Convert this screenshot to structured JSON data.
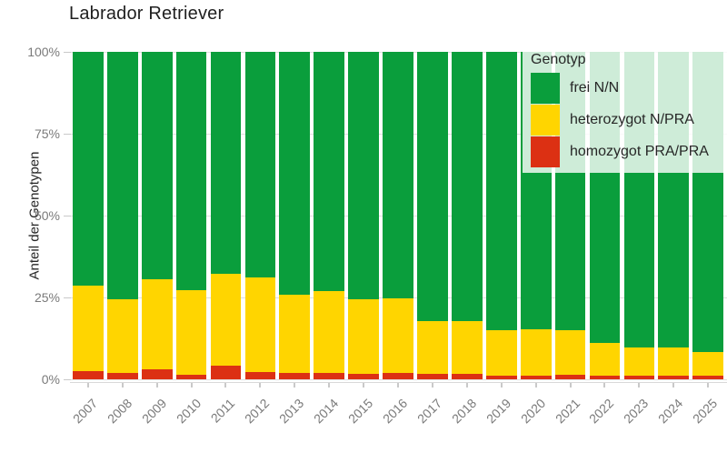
{
  "title": "Labrador Retriever",
  "y_axis": {
    "title": "Anteil der Genotypen",
    "tick_labels": [
      "0%",
      "25%",
      "50%",
      "75%",
      "100%"
    ],
    "tick_values": [
      0,
      25,
      50,
      75,
      100
    ]
  },
  "x_axis": {
    "tick_labels": [
      "2007",
      "2008",
      "2009",
      "2010",
      "2011",
      "2012",
      "2013",
      "2014",
      "2015",
      "2016",
      "2017",
      "2018",
      "2019",
      "2020",
      "2021",
      "2022",
      "2023",
      "2024",
      "2025"
    ]
  },
  "legend": {
    "title": "Genotyp",
    "items": [
      {
        "label": "frei N/N",
        "color": "#0a9e3c"
      },
      {
        "label": "heterozygot N/PRA",
        "color": "#ffd500"
      },
      {
        "label": "homozygot PRA/PRA",
        "color": "#dc3013"
      }
    ]
  },
  "chart_data": {
    "type": "bar",
    "stacked": true,
    "stack_unit": "percent",
    "title": "Labrador Retriever",
    "xlabel": "",
    "ylabel": "Anteil der Genotypen",
    "ylim": [
      0,
      100
    ],
    "grid": true,
    "legend_position": "top-right-overlay",
    "categories": [
      "2007",
      "2008",
      "2009",
      "2010",
      "2011",
      "2012",
      "2013",
      "2014",
      "2015",
      "2016",
      "2017",
      "2018",
      "2019",
      "2020",
      "2021",
      "2022",
      "2023",
      "2024",
      "2025"
    ],
    "series": [
      {
        "name": "frei N/N",
        "color": "#0a9e3c",
        "values": [
          71.5,
          75.5,
          69.5,
          72.8,
          67.8,
          68.9,
          74.2,
          73.1,
          75.6,
          75.3,
          82.2,
          82.2,
          85.0,
          84.7,
          85.0,
          88.9,
          90.3,
          90.3,
          91.7
        ]
      },
      {
        "name": "heterozygot N/PRA",
        "color": "#ffd500",
        "values": [
          26.0,
          22.5,
          27.5,
          25.8,
          28.0,
          28.9,
          23.8,
          25.0,
          22.6,
          22.8,
          16.1,
          16.0,
          13.9,
          14.2,
          13.6,
          10.0,
          8.6,
          8.6,
          7.2
        ]
      },
      {
        "name": "homozygot PRA/PRA",
        "color": "#dc3013",
        "values": [
          2.5,
          2.0,
          3.0,
          1.4,
          4.2,
          2.2,
          2.0,
          1.9,
          1.8,
          1.9,
          1.7,
          1.8,
          1.1,
          1.1,
          1.4,
          1.1,
          1.1,
          1.1,
          1.1
        ]
      }
    ]
  },
  "colors": {
    "green": "#0a9e3c",
    "yellow": "#ffd500",
    "red": "#dc3013",
    "title_text": "#1f1f1f",
    "axis_text": "#7a7a7a",
    "gridline": "#dedede",
    "legend_background": "rgba(255,255,255,0.8)"
  }
}
